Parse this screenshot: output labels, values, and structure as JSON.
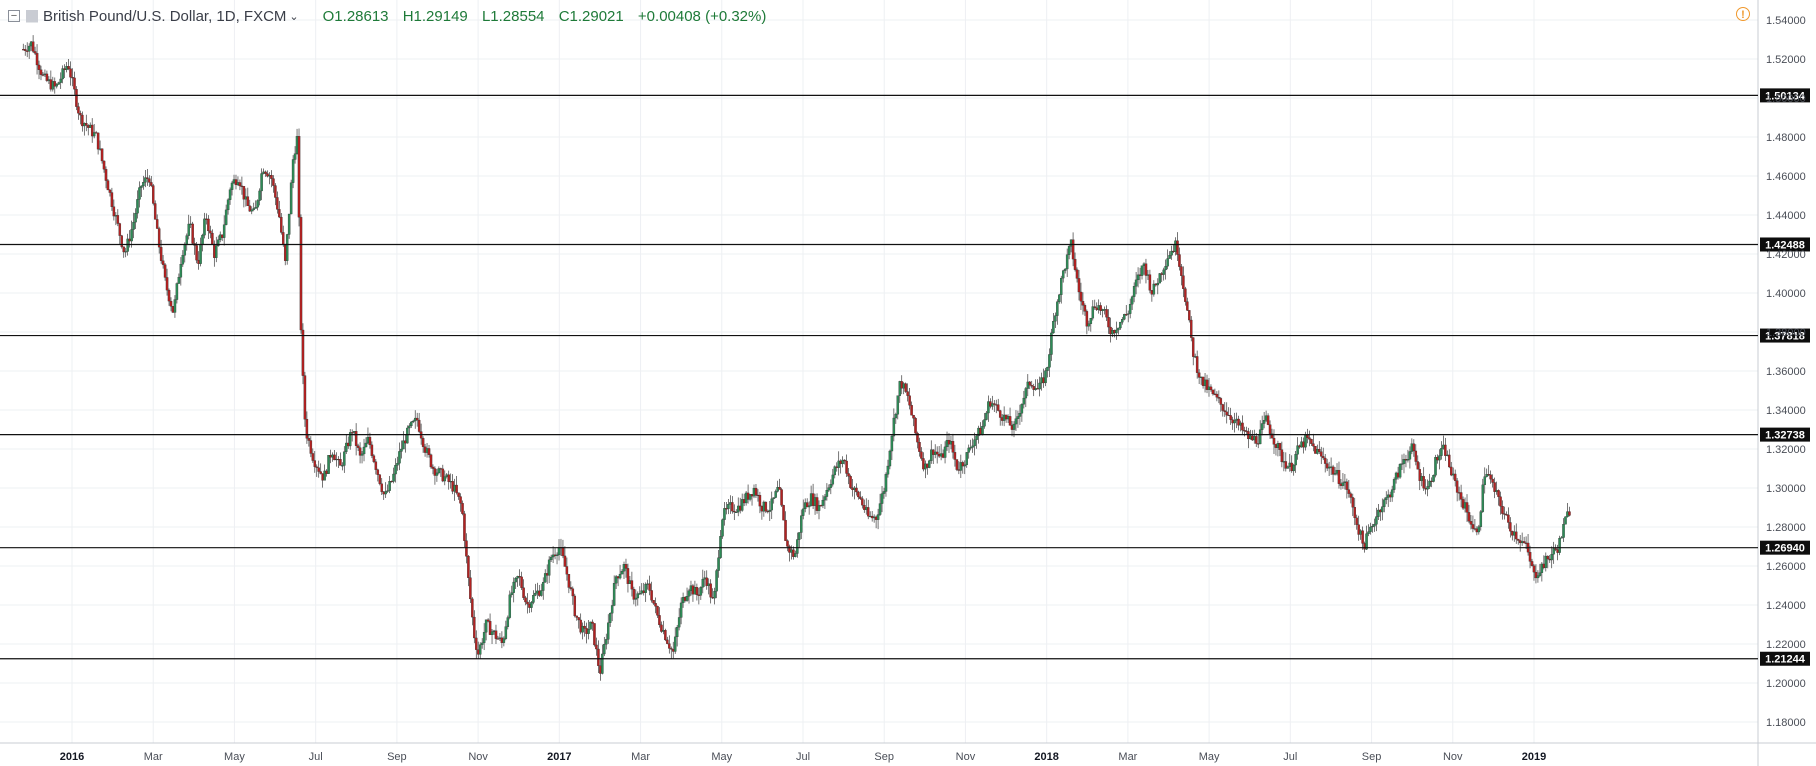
{
  "header": {
    "symbol": "British Pound/U.S. Dollar, 1D, FXCM",
    "open": "O1.28613",
    "high": "H1.29149",
    "low": "L1.28554",
    "close": "C1.29021",
    "change": "+0.00408 (+0.32%)"
  },
  "colors": {
    "up": "#2e8b57",
    "down": "#b22222",
    "wick": "#3c3c3c",
    "grid": "#eef0f3",
    "level_line": "#111111",
    "level_label_bg": "#0d0d0d",
    "warning": "#f0982c"
  },
  "icons": [
    "collapse-icon",
    "symbol-flag-icon",
    "chevron-down-icon",
    "warning-icon"
  ],
  "chart_data": {
    "type": "candlestick",
    "y_axis": {
      "ylim": [
        1.17,
        1.545
      ],
      "ticks": [
        "1.54000",
        "1.52000",
        "1.50000",
        "1.48000",
        "1.46000",
        "1.44000",
        "1.42000",
        "1.40000",
        "1.38000",
        "1.36000",
        "1.34000",
        "1.32000",
        "1.30000",
        "1.28000",
        "1.26000",
        "1.24000",
        "1.22000",
        "1.20000",
        "1.18000"
      ],
      "tick_values": [
        1.54,
        1.52,
        1.5,
        1.48,
        1.46,
        1.44,
        1.42,
        1.4,
        1.38,
        1.36,
        1.34,
        1.32,
        1.3,
        1.28,
        1.26,
        1.24,
        1.22,
        1.2,
        1.18
      ]
    },
    "x_axis": {
      "labels": [
        "2016",
        "Mar",
        "May",
        "Jul",
        "Sep",
        "Nov",
        "2017",
        "Mar",
        "May",
        "Jul",
        "Sep",
        "Nov",
        "2018",
        "Mar",
        "May",
        "Jul",
        "Sep",
        "Nov",
        "2019"
      ],
      "label_months": [
        24,
        26,
        28,
        30,
        32,
        34,
        36,
        38,
        40,
        42,
        44,
        46,
        48,
        50,
        52,
        54,
        56,
        58,
        60
      ],
      "year_labels": [
        "2016",
        "2017",
        "2018",
        "2019"
      ],
      "month_range": [
        22.7,
        61.1
      ]
    },
    "levels": [
      {
        "label": "1.50134",
        "value": 1.50134
      },
      {
        "label": "1.42488",
        "value": 1.42488
      },
      {
        "label": "1.37818",
        "value": 1.37818
      },
      {
        "label": "1.32738",
        "value": 1.32738
      },
      {
        "label": "1.26940",
        "value": 1.2694
      },
      {
        "label": "1.21244",
        "value": 1.21244
      }
    ],
    "price_path": [
      [
        22.8,
        1.525
      ],
      [
        23.0,
        1.528
      ],
      [
        23.3,
        1.51
      ],
      [
        23.6,
        1.505
      ],
      [
        23.9,
        1.518
      ],
      [
        24.2,
        1.49
      ],
      [
        24.6,
        1.48
      ],
      [
        25.0,
        1.445
      ],
      [
        25.3,
        1.42
      ],
      [
        25.5,
        1.435
      ],
      [
        25.7,
        1.455
      ],
      [
        25.9,
        1.46
      ],
      [
        26.1,
        1.43
      ],
      [
        26.3,
        1.405
      ],
      [
        26.5,
        1.39
      ],
      [
        26.7,
        1.42
      ],
      [
        26.9,
        1.435
      ],
      [
        27.1,
        1.415
      ],
      [
        27.3,
        1.44
      ],
      [
        27.5,
        1.42
      ],
      [
        27.7,
        1.43
      ],
      [
        27.9,
        1.455
      ],
      [
        28.1,
        1.46
      ],
      [
        28.3,
        1.445
      ],
      [
        28.5,
        1.44
      ],
      [
        28.7,
        1.465
      ],
      [
        28.9,
        1.46
      ],
      [
        29.1,
        1.44
      ],
      [
        29.25,
        1.415
      ],
      [
        29.45,
        1.47
      ],
      [
        29.55,
        1.48
      ],
      [
        29.65,
        1.37
      ],
      [
        29.75,
        1.33
      ],
      [
        29.95,
        1.315
      ],
      [
        30.2,
        1.305
      ],
      [
        30.4,
        1.32
      ],
      [
        30.6,
        1.31
      ],
      [
        30.9,
        1.33
      ],
      [
        31.1,
        1.315
      ],
      [
        31.3,
        1.325
      ],
      [
        31.5,
        1.31
      ],
      [
        31.7,
        1.295
      ],
      [
        31.9,
        1.305
      ],
      [
        32.1,
        1.32
      ],
      [
        32.3,
        1.33
      ],
      [
        32.5,
        1.335
      ],
      [
        32.7,
        1.32
      ],
      [
        32.9,
        1.31
      ],
      [
        33.2,
        1.305
      ],
      [
        33.4,
        1.3
      ],
      [
        33.6,
        1.29
      ],
      [
        33.75,
        1.255
      ],
      [
        33.9,
        1.225
      ],
      [
        34.0,
        1.215
      ],
      [
        34.2,
        1.23
      ],
      [
        34.4,
        1.225
      ],
      [
        34.6,
        1.22
      ],
      [
        34.8,
        1.245
      ],
      [
        35.0,
        1.255
      ],
      [
        35.2,
        1.24
      ],
      [
        35.4,
        1.245
      ],
      [
        35.6,
        1.25
      ],
      [
        35.8,
        1.265
      ],
      [
        36.0,
        1.27
      ],
      [
        36.2,
        1.255
      ],
      [
        36.4,
        1.235
      ],
      [
        36.6,
        1.225
      ],
      [
        36.8,
        1.23
      ],
      [
        37.0,
        1.205
      ],
      [
        37.2,
        1.23
      ],
      [
        37.4,
        1.255
      ],
      [
        37.6,
        1.26
      ],
      [
        37.8,
        1.245
      ],
      [
        38.0,
        1.245
      ],
      [
        38.2,
        1.25
      ],
      [
        38.4,
        1.235
      ],
      [
        38.6,
        1.225
      ],
      [
        38.8,
        1.215
      ],
      [
        39.0,
        1.24
      ],
      [
        39.2,
        1.25
      ],
      [
        39.4,
        1.245
      ],
      [
        39.6,
        1.255
      ],
      [
        39.8,
        1.24
      ],
      [
        40.0,
        1.285
      ],
      [
        40.2,
        1.29
      ],
      [
        40.4,
        1.29
      ],
      [
        40.6,
        1.295
      ],
      [
        40.8,
        1.3
      ],
      [
        41.0,
        1.29
      ],
      [
        41.2,
        1.29
      ],
      [
        41.4,
        1.3
      ],
      [
        41.6,
        1.27
      ],
      [
        41.8,
        1.265
      ],
      [
        42.0,
        1.29
      ],
      [
        42.2,
        1.295
      ],
      [
        42.4,
        1.29
      ],
      [
        42.6,
        1.3
      ],
      [
        42.8,
        1.31
      ],
      [
        43.0,
        1.315
      ],
      [
        43.2,
        1.3
      ],
      [
        43.4,
        1.295
      ],
      [
        43.6,
        1.285
      ],
      [
        43.8,
        1.285
      ],
      [
        44.0,
        1.3
      ],
      [
        44.2,
        1.33
      ],
      [
        44.4,
        1.355
      ],
      [
        44.6,
        1.345
      ],
      [
        44.8,
        1.325
      ],
      [
        45.0,
        1.31
      ],
      [
        45.2,
        1.32
      ],
      [
        45.4,
        1.315
      ],
      [
        45.6,
        1.325
      ],
      [
        45.8,
        1.31
      ],
      [
        46.0,
        1.315
      ],
      [
        46.2,
        1.325
      ],
      [
        46.4,
        1.33
      ],
      [
        46.6,
        1.345
      ],
      [
        46.8,
        1.34
      ],
      [
        47.0,
        1.335
      ],
      [
        47.2,
        1.33
      ],
      [
        47.4,
        1.345
      ],
      [
        47.6,
        1.355
      ],
      [
        47.8,
        1.35
      ],
      [
        48.0,
        1.36
      ],
      [
        48.2,
        1.39
      ],
      [
        48.4,
        1.41
      ],
      [
        48.6,
        1.425
      ],
      [
        48.8,
        1.4
      ],
      [
        49.0,
        1.385
      ],
      [
        49.2,
        1.395
      ],
      [
        49.4,
        1.39
      ],
      [
        49.6,
        1.38
      ],
      [
        49.8,
        1.385
      ],
      [
        50.0,
        1.39
      ],
      [
        50.2,
        1.405
      ],
      [
        50.4,
        1.415
      ],
      [
        50.6,
        1.4
      ],
      [
        50.8,
        1.41
      ],
      [
        51.0,
        1.42
      ],
      [
        51.2,
        1.425
      ],
      [
        51.4,
        1.4
      ],
      [
        51.6,
        1.37
      ],
      [
        51.8,
        1.355
      ],
      [
        52.0,
        1.35
      ],
      [
        52.2,
        1.345
      ],
      [
        52.4,
        1.34
      ],
      [
        52.6,
        1.335
      ],
      [
        52.8,
        1.33
      ],
      [
        53.0,
        1.325
      ],
      [
        53.2,
        1.325
      ],
      [
        53.4,
        1.335
      ],
      [
        53.6,
        1.325
      ],
      [
        53.8,
        1.315
      ],
      [
        54.0,
        1.31
      ],
      [
        54.2,
        1.32
      ],
      [
        54.4,
        1.325
      ],
      [
        54.6,
        1.32
      ],
      [
        54.8,
        1.315
      ],
      [
        55.0,
        1.31
      ],
      [
        55.2,
        1.305
      ],
      [
        55.4,
        1.3
      ],
      [
        55.6,
        1.285
      ],
      [
        55.8,
        1.27
      ],
      [
        56.0,
        1.28
      ],
      [
        56.2,
        1.29
      ],
      [
        56.4,
        1.295
      ],
      [
        56.6,
        1.305
      ],
      [
        56.8,
        1.315
      ],
      [
        57.0,
        1.32
      ],
      [
        57.2,
        1.305
      ],
      [
        57.4,
        1.3
      ],
      [
        57.6,
        1.315
      ],
      [
        57.8,
        1.32
      ],
      [
        58.0,
        1.305
      ],
      [
        58.2,
        1.295
      ],
      [
        58.4,
        1.285
      ],
      [
        58.6,
        1.275
      ],
      [
        58.8,
        1.31
      ],
      [
        59.0,
        1.3
      ],
      [
        59.2,
        1.29
      ],
      [
        59.4,
        1.28
      ],
      [
        59.6,
        1.275
      ],
      [
        59.8,
        1.27
      ],
      [
        60.0,
        1.255
      ],
      [
        60.2,
        1.26
      ],
      [
        60.4,
        1.265
      ],
      [
        60.6,
        1.27
      ],
      [
        60.8,
        1.285
      ],
      [
        60.9,
        1.29
      ]
    ]
  }
}
